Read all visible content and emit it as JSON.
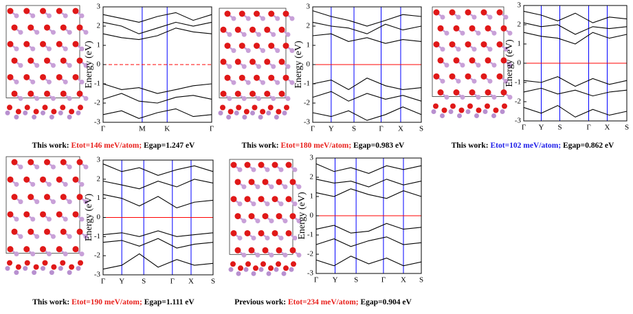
{
  "chart_data": [
    {
      "type": "line",
      "ylabel": "Energy (eV)",
      "ylim": [
        -3,
        3
      ],
      "yticks": [
        -3,
        -2,
        -1,
        0,
        1,
        2,
        3
      ],
      "xlim": [
        0,
        1
      ],
      "xticks": [
        {
          "value": 0,
          "label": "Γ"
        },
        {
          "value": 0.36,
          "label": "M"
        },
        {
          "value": 0.59,
          "label": "K"
        },
        {
          "value": 1,
          "label": "Γ"
        }
      ],
      "kline_color": "#0000ff",
      "zero_line": {
        "color": "#ff0000",
        "dashed": true
      },
      "x": [
        0,
        0.17,
        0.33,
        0.5,
        0.67,
        0.83,
        1
      ],
      "series": [
        {
          "color": "#000000",
          "values": [
            2.6,
            2.4,
            2.2,
            2.5,
            2.7,
            2.3,
            2.6
          ]
        },
        {
          "color": "#000000",
          "values": [
            1.6,
            1.4,
            1.3,
            1.5,
            1.9,
            1.7,
            1.6
          ]
        },
        {
          "color": "#000000",
          "values": [
            2.2,
            2.0,
            1.6,
            1.9,
            2.2,
            2.0,
            2.2
          ]
        },
        {
          "color": "#000000",
          "values": [
            -1.0,
            -1.3,
            -1.2,
            -1.5,
            -1.3,
            -1.1,
            -1.0
          ]
        },
        {
          "color": "#000000",
          "values": [
            -1.8,
            -1.5,
            -1.9,
            -2.0,
            -1.7,
            -1.6,
            -1.8
          ]
        },
        {
          "color": "#000000",
          "values": [
            -2.6,
            -2.4,
            -2.8,
            -2.5,
            -2.3,
            -2.7,
            -2.6
          ]
        }
      ],
      "caption": {
        "prefix": "This work:",
        "etot": "Etot=146 meV/atom;",
        "etot_color": "#e8201c",
        "egap": "Egap=1.247 eV"
      }
    },
    {
      "type": "line",
      "ylabel": "Energy (eV)",
      "ylim": [
        -3,
        3
      ],
      "yticks": [
        -3,
        -2,
        -1,
        0,
        1,
        2,
        3
      ],
      "xlim": [
        0,
        1
      ],
      "xticks": [
        {
          "value": 0,
          "label": "Γ"
        },
        {
          "value": 0.17,
          "label": "Y"
        },
        {
          "value": 0.38,
          "label": "S"
        },
        {
          "value": 0.63,
          "label": "Γ"
        },
        {
          "value": 0.81,
          "label": "X"
        },
        {
          "value": 1,
          "label": "S"
        }
      ],
      "kline_color": "#0000ff",
      "zero_line": {
        "color": "#ff0000",
        "dashed": false
      },
      "x": [
        0,
        0.17,
        0.33,
        0.5,
        0.67,
        0.83,
        1
      ],
      "series": [
        {
          "color": "#000000",
          "values": [
            2.8,
            2.5,
            2.3,
            2.0,
            2.3,
            2.6,
            2.5
          ]
        },
        {
          "color": "#000000",
          "values": [
            1.5,
            1.6,
            1.2,
            1.4,
            1.1,
            1.3,
            1.2
          ]
        },
        {
          "color": "#000000",
          "values": [
            2.2,
            2.0,
            1.9,
            1.6,
            2.1,
            1.8,
            2.0
          ]
        },
        {
          "color": "#000000",
          "values": [
            -1.0,
            -0.8,
            -1.3,
            -0.7,
            -1.1,
            -1.3,
            -1.2
          ]
        },
        {
          "color": "#000000",
          "values": [
            -1.7,
            -1.4,
            -1.9,
            -1.5,
            -1.8,
            -1.6,
            -1.9
          ]
        },
        {
          "color": "#000000",
          "values": [
            -2.5,
            -2.7,
            -2.4,
            -2.9,
            -2.6,
            -2.2,
            -2.6
          ]
        }
      ],
      "caption": {
        "prefix": "This work:",
        "etot": "Etot=180 meV/atom;",
        "etot_color": "#e8201c",
        "egap": "Egap=0.983 eV"
      }
    },
    {
      "type": "line",
      "ylabel": "Energy (eV)",
      "ylim": [
        -3,
        3
      ],
      "yticks": [
        -3,
        -2,
        -1,
        0,
        1,
        2,
        3
      ],
      "xlim": [
        0,
        1
      ],
      "xticks": [
        {
          "value": 0,
          "label": "Γ"
        },
        {
          "value": 0.17,
          "label": "Y"
        },
        {
          "value": 0.35,
          "label": "S"
        },
        {
          "value": 0.63,
          "label": "Γ"
        },
        {
          "value": 0.81,
          "label": "X"
        },
        {
          "value": 1,
          "label": "S"
        }
      ],
      "kline_color": "#0000ff",
      "zero_line": {
        "color": "#ff0000",
        "dashed": false
      },
      "x": [
        0,
        0.17,
        0.33,
        0.5,
        0.67,
        0.83,
        1
      ],
      "series": [
        {
          "color": "#000000",
          "values": [
            2.7,
            2.5,
            2.2,
            2.6,
            2.1,
            2.4,
            2.3
          ]
        },
        {
          "color": "#000000",
          "values": [
            1.6,
            1.4,
            1.3,
            1.0,
            1.6,
            1.3,
            1.5
          ]
        },
        {
          "color": "#000000",
          "values": [
            2.1,
            1.9,
            2.0,
            1.5,
            1.9,
            1.8,
            1.9
          ]
        },
        {
          "color": "#000000",
          "values": [
            -0.9,
            -1.0,
            -0.7,
            -1.2,
            -0.8,
            -1.1,
            -0.9
          ]
        },
        {
          "color": "#000000",
          "values": [
            -1.5,
            -1.3,
            -1.6,
            -1.4,
            -1.7,
            -1.5,
            -1.4
          ]
        },
        {
          "color": "#000000",
          "values": [
            -2.3,
            -2.6,
            -2.2,
            -2.8,
            -2.4,
            -2.7,
            -2.5
          ]
        }
      ],
      "caption": {
        "prefix": "This work:",
        "etot": "Etot=102 meV/atom;",
        "etot_color": "#1c1ce8",
        "egap": "Egap=0.862 eV"
      }
    },
    {
      "type": "line",
      "ylabel": "Energy (eV)",
      "ylim": [
        -3,
        3
      ],
      "yticks": [
        -3,
        -2,
        -1,
        0,
        1,
        2,
        3
      ],
      "xlim": [
        0,
        1
      ],
      "xticks": [
        {
          "value": 0,
          "label": "Γ"
        },
        {
          "value": 0.17,
          "label": "Y"
        },
        {
          "value": 0.37,
          "label": "S"
        },
        {
          "value": 0.63,
          "label": "Γ"
        },
        {
          "value": 0.8,
          "label": "X"
        },
        {
          "value": 1,
          "label": "S"
        }
      ],
      "kline_color": "#0000ff",
      "zero_line": {
        "color": "#ff0000",
        "dashed": false
      },
      "x": [
        0,
        0.17,
        0.33,
        0.5,
        0.67,
        0.83,
        1
      ],
      "series": [
        {
          "color": "#000000",
          "values": [
            2.8,
            2.4,
            2.6,
            2.2,
            2.5,
            2.7,
            2.4
          ]
        },
        {
          "color": "#000000",
          "values": [
            1.9,
            1.7,
            1.5,
            1.9,
            1.6,
            2.0,
            1.8
          ]
        },
        {
          "color": "#000000",
          "values": [
            1.2,
            1.0,
            0.6,
            1.1,
            0.5,
            0.8,
            0.9
          ]
        },
        {
          "color": "#000000",
          "values": [
            -0.9,
            -0.8,
            -1.0,
            -0.7,
            -1.0,
            -0.9,
            -0.8
          ]
        },
        {
          "color": "#000000",
          "values": [
            -1.3,
            -1.2,
            -1.5,
            -1.1,
            -1.6,
            -1.4,
            -1.3
          ]
        },
        {
          "color": "#000000",
          "values": [
            -2.7,
            -2.5,
            -1.9,
            -2.6,
            -2.2,
            -2.5,
            -2.4
          ]
        }
      ],
      "caption": {
        "prefix": "This work:",
        "etot": "Etot=190 meV/atom;",
        "etot_color": "#e8201c",
        "egap": "Egap=1.111 eV"
      }
    },
    {
      "type": "line",
      "ylabel": "Energy (eV)",
      "ylim": [
        -3,
        3
      ],
      "yticks": [
        -3,
        -2,
        -1,
        0,
        1,
        2,
        3
      ],
      "xlim": [
        0,
        1
      ],
      "xticks": [
        {
          "value": 0,
          "label": "Γ"
        },
        {
          "value": 0.18,
          "label": "Y"
        },
        {
          "value": 0.38,
          "label": "S"
        },
        {
          "value": 0.64,
          "label": "Γ"
        },
        {
          "value": 0.83,
          "label": "X"
        },
        {
          "value": 1,
          "label": "S"
        }
      ],
      "kline_color": "#0000ff",
      "zero_line": {
        "color": "#ff0000",
        "dashed": false
      },
      "x": [
        0,
        0.17,
        0.33,
        0.5,
        0.67,
        0.83,
        1
      ],
      "series": [
        {
          "color": "#000000",
          "values": [
            2.7,
            2.3,
            2.5,
            2.2,
            2.6,
            2.4,
            2.6
          ]
        },
        {
          "color": "#000000",
          "values": [
            1.9,
            1.7,
            1.8,
            1.5,
            1.9,
            1.6,
            1.8
          ]
        },
        {
          "color": "#000000",
          "values": [
            1.2,
            1.0,
            1.4,
            1.1,
            0.9,
            1.3,
            1.0
          ]
        },
        {
          "color": "#000000",
          "values": [
            -0.7,
            -0.5,
            -0.9,
            -0.8,
            -0.4,
            -0.7,
            -0.6
          ]
        },
        {
          "color": "#000000",
          "values": [
            -1.5,
            -1.2,
            -1.6,
            -1.3,
            -1.1,
            -1.5,
            -1.4
          ]
        },
        {
          "color": "#000000",
          "values": [
            -2.3,
            -2.6,
            -2.1,
            -2.5,
            -2.2,
            -2.6,
            -2.4
          ]
        }
      ],
      "caption": {
        "prefix": "Previous work:",
        "etot": "Etot=234 meV/atom;",
        "etot_color": "#e8201c",
        "egap": "Egap=0.904 eV"
      }
    }
  ]
}
